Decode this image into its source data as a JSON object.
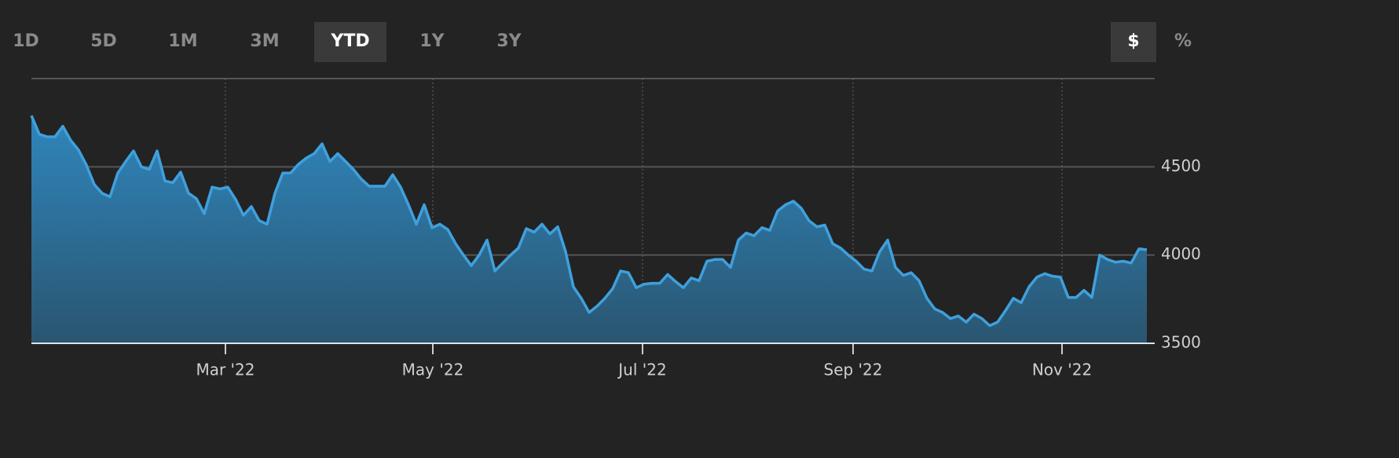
{
  "toolbar": {
    "ranges": [
      "1D",
      "5D",
      "1M",
      "3M",
      "YTD",
      "1Y",
      "3Y"
    ],
    "selected": "YTD",
    "units": [
      "$",
      "%"
    ],
    "selected_unit": "$"
  },
  "chart_data": {
    "type": "area",
    "values": [
      4790,
      4685,
      4670,
      4670,
      4730,
      4650,
      4595,
      4510,
      4400,
      4350,
      4330,
      4465,
      4530,
      4590,
      4500,
      4485,
      4590,
      4420,
      4410,
      4470,
      4350,
      4320,
      4235,
      4385,
      4375,
      4385,
      4315,
      4225,
      4275,
      4195,
      4175,
      4350,
      4465,
      4465,
      4515,
      4550,
      4575,
      4630,
      4530,
      4575,
      4530,
      4485,
      4430,
      4390,
      4390,
      4390,
      4455,
      4385,
      4285,
      4175,
      4285,
      4155,
      4175,
      4145,
      4065,
      4000,
      3940,
      4000,
      4085,
      3910,
      3955,
      4000,
      4040,
      4150,
      4130,
      4175,
      4120,
      4160,
      4020,
      3820,
      3755,
      3675,
      3710,
      3755,
      3810,
      3910,
      3900,
      3815,
      3835,
      3840,
      3840,
      3890,
      3850,
      3815,
      3870,
      3855,
      3965,
      3975,
      3975,
      3930,
      4085,
      4125,
      4110,
      4155,
      4140,
      4250,
      4285,
      4305,
      4265,
      4195,
      4160,
      4170,
      4065,
      4040,
      4000,
      3965,
      3920,
      3910,
      4020,
      4085,
      3930,
      3885,
      3900,
      3855,
      3755,
      3695,
      3675,
      3640,
      3655,
      3620,
      3665,
      3640,
      3600,
      3620,
      3685,
      3755,
      3730,
      3820,
      3875,
      3895,
      3880,
      3875,
      3760,
      3760,
      3800,
      3760,
      4000,
      3975,
      3960,
      3965,
      3955,
      4035,
      4030
    ],
    "color": "#3fa0dc",
    "xlim": [
      0,
      143
    ],
    "xticks": [
      {
        "value": 24.7,
        "label": "Mar '22"
      },
      {
        "value": 51.1,
        "label": "May '22"
      },
      {
        "value": 77.8,
        "label": "Jul '22"
      },
      {
        "value": 104.6,
        "label": "Sep '22"
      },
      {
        "value": 131.2,
        "label": "Nov '22"
      }
    ],
    "ylim": [
      3500,
      5000
    ],
    "yticks": [
      3500,
      4000,
      4500
    ],
    "grid": true
  }
}
